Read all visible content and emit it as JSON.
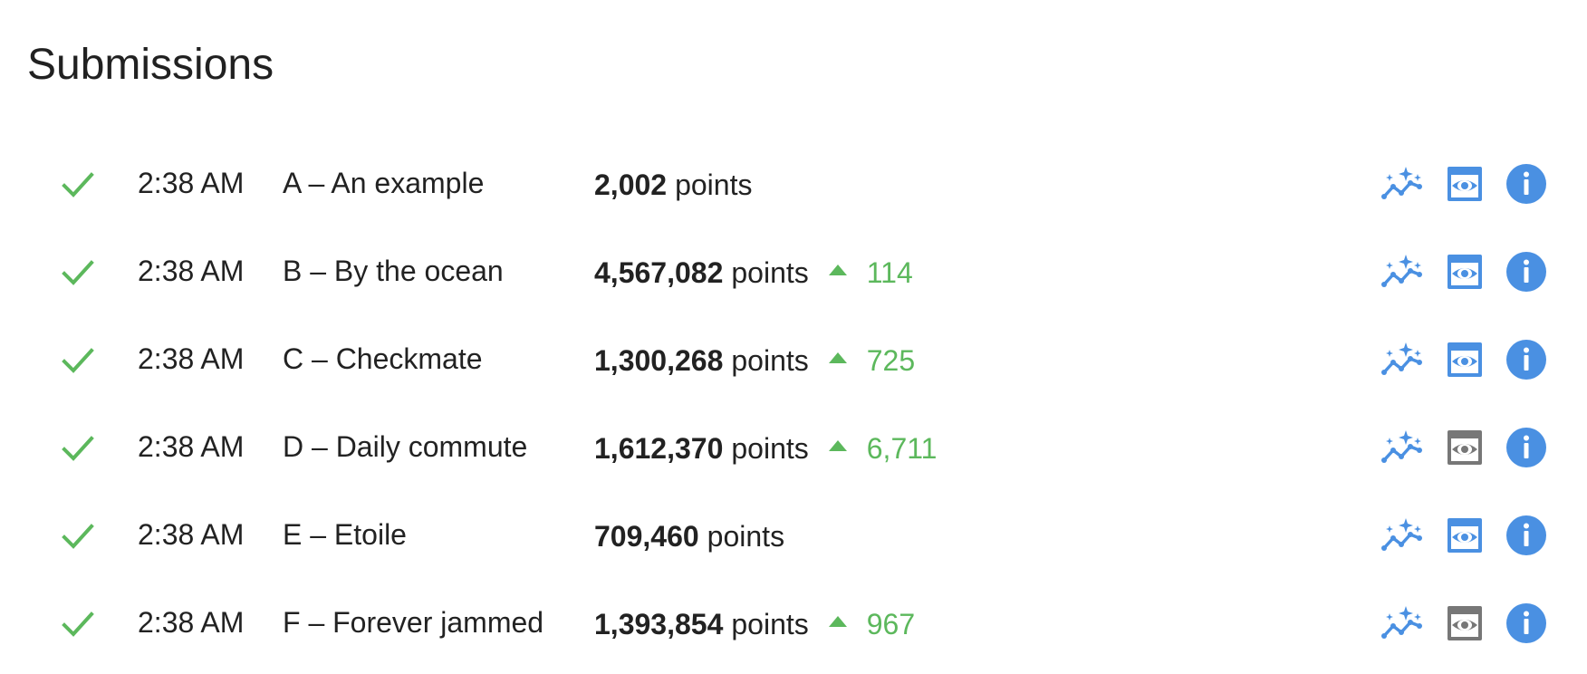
{
  "page": {
    "title": "Submissions"
  },
  "colors": {
    "check": "#5cb85c",
    "delta": "#5cb85c",
    "accent": "#4a90e2",
    "view_disabled": "#777777"
  },
  "icons": {
    "status": "check-icon",
    "trend": "sparkle-trend-icon",
    "view": "eye-icon",
    "info": "info-icon"
  },
  "rows": [
    {
      "time": "2:38 AM",
      "name": "A – An example",
      "points": "2,002",
      "points_label": "points",
      "delta": "",
      "view_enabled": true
    },
    {
      "time": "2:38 AM",
      "name": "B – By the ocean",
      "points": "4,567,082",
      "points_label": "points",
      "delta": "114",
      "view_enabled": true
    },
    {
      "time": "2:38 AM",
      "name": "C – Checkmate",
      "points": "1,300,268",
      "points_label": "points",
      "delta": "725",
      "view_enabled": true
    },
    {
      "time": "2:38 AM",
      "name": "D – Daily commute",
      "points": "1,612,370",
      "points_label": "points",
      "delta": "6,711",
      "view_enabled": false
    },
    {
      "time": "2:38 AM",
      "name": "E – Etoile",
      "points": "709,460",
      "points_label": "points",
      "delta": "",
      "view_enabled": true
    },
    {
      "time": "2:38 AM",
      "name": "F – Forever jammed",
      "points": "1,393,854",
      "points_label": "points",
      "delta": "967",
      "view_enabled": false
    }
  ]
}
